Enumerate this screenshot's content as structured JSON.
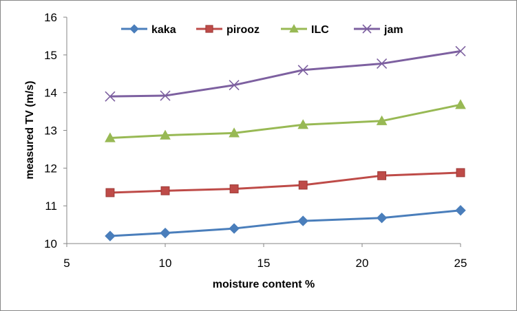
{
  "chart_data": {
    "type": "line",
    "title": "",
    "xlabel": "moisture content %",
    "ylabel": "measured TV (m/s)",
    "xlim": [
      5,
      25
    ],
    "ylim": [
      10,
      16
    ],
    "xticks": [
      5,
      10,
      15,
      20,
      25
    ],
    "yticks": [
      10,
      11,
      12,
      13,
      14,
      15,
      16
    ],
    "grid": false,
    "legend": "top",
    "series": [
      {
        "name": "kaka",
        "color": "#4a7ebb",
        "marker": "diamond",
        "x": [
          7.2,
          10,
          13.5,
          17,
          21,
          25
        ],
        "y": [
          10.2,
          10.28,
          10.4,
          10.6,
          10.68,
          10.88
        ]
      },
      {
        "name": "pirooz",
        "color": "#be4b48",
        "marker": "square",
        "x": [
          7.2,
          10,
          13.5,
          17,
          21,
          25
        ],
        "y": [
          11.35,
          11.4,
          11.45,
          11.55,
          11.8,
          11.88
        ]
      },
      {
        "name": "ILC",
        "color": "#98b954",
        "marker": "triangle",
        "x": [
          7.2,
          10,
          13.5,
          17,
          21,
          25
        ],
        "y": [
          12.8,
          12.87,
          12.93,
          13.15,
          13.25,
          13.68
        ]
      },
      {
        "name": "jam",
        "color": "#7d60a0",
        "marker": "x",
        "x": [
          7.2,
          10,
          13.5,
          17,
          21,
          25
        ],
        "y": [
          13.9,
          13.92,
          14.2,
          14.6,
          14.77,
          15.1
        ]
      }
    ]
  }
}
